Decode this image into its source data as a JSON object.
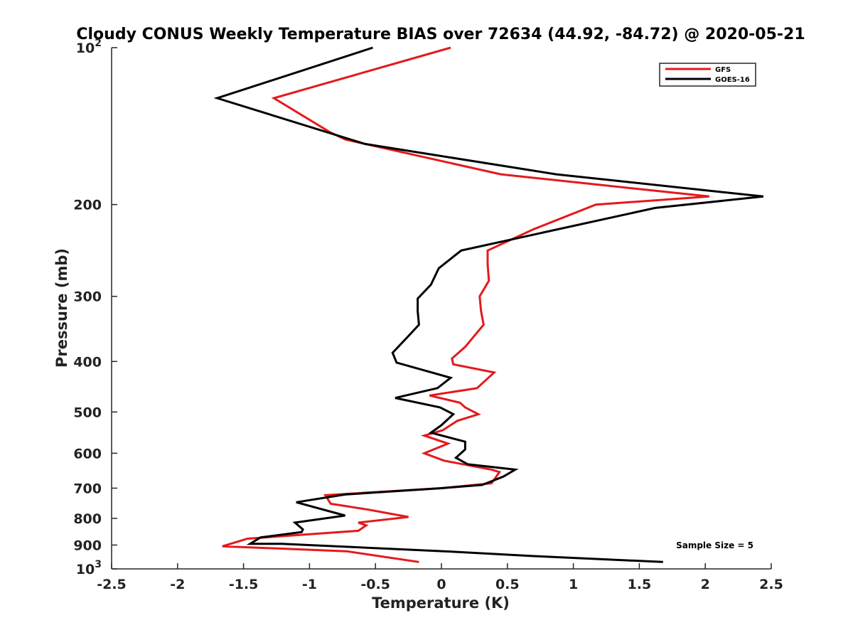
{
  "chart_data": {
    "type": "line",
    "title": "Cloudy CONUS Weekly Temperature BIAS over 72634 (44.92, -84.72) @ 2020-05-21",
    "xlabel": "Temperature (K)",
    "ylabel": "Pressure (mb)",
    "xlim": [
      -2.5,
      2.5
    ],
    "ylim": [
      1000,
      100
    ],
    "y_scale": "log",
    "y_reversed": true,
    "grid": false,
    "legend_position": "top-right",
    "x_ticks": [
      "-2.5",
      "-2",
      "-1.5",
      "-1",
      "-0.5",
      "0",
      "0.5",
      "1",
      "1.5",
      "2",
      "2.5"
    ],
    "y_ticks": [
      {
        "value": 100,
        "base": "10",
        "exp": "2"
      },
      {
        "value": 200,
        "label": "200"
      },
      {
        "value": 300,
        "label": "300"
      },
      {
        "value": 400,
        "label": "400"
      },
      {
        "value": 500,
        "label": "500"
      },
      {
        "value": 600,
        "label": "600"
      },
      {
        "value": 700,
        "label": "700"
      },
      {
        "value": 800,
        "label": "800"
      },
      {
        "value": 900,
        "label": "900"
      },
      {
        "value": 1000,
        "base": "10",
        "exp": "3"
      }
    ],
    "series": [
      {
        "name": "GFS",
        "color": "#e31a1c",
        "points": [
          [
            0.07,
            100
          ],
          [
            -1.27,
            125
          ],
          [
            -0.85,
            145
          ],
          [
            -0.73,
            150
          ],
          [
            0.45,
            175
          ],
          [
            2.03,
            193
          ],
          [
            1.17,
            200
          ],
          [
            0.7,
            223
          ],
          [
            0.35,
            245
          ],
          [
            0.35,
            260
          ],
          [
            0.36,
            280
          ],
          [
            0.29,
            300
          ],
          [
            0.3,
            320
          ],
          [
            0.32,
            340
          ],
          [
            0.18,
            375
          ],
          [
            0.08,
            395
          ],
          [
            0.09,
            405
          ],
          [
            0.4,
            420
          ],
          [
            0.27,
            450
          ],
          [
            -0.09,
            465
          ],
          [
            0.14,
            480
          ],
          [
            0.18,
            490
          ],
          [
            0.28,
            505
          ],
          [
            0.12,
            520
          ],
          [
            0.01,
            542
          ],
          [
            -0.13,
            555
          ],
          [
            0.05,
            575
          ],
          [
            -0.13,
            600
          ],
          [
            0.02,
            620
          ],
          [
            0.38,
            645
          ],
          [
            0.44,
            652
          ],
          [
            0.38,
            685
          ],
          [
            0.0,
            700
          ],
          [
            -0.88,
            722
          ],
          [
            -0.84,
            750
          ],
          [
            -0.55,
            770
          ],
          [
            -0.25,
            795
          ],
          [
            -0.63,
            815
          ],
          [
            -0.57,
            825
          ],
          [
            -0.63,
            845
          ],
          [
            -1.47,
            875
          ],
          [
            -1.66,
            905
          ],
          [
            -0.72,
            925
          ],
          [
            -0.17,
            970
          ]
        ]
      },
      {
        "name": "GOES-16",
        "color": "#000000",
        "points": [
          [
            -0.52,
            100
          ],
          [
            -1.7,
            125
          ],
          [
            -0.58,
            153
          ],
          [
            0.87,
            175
          ],
          [
            2.44,
            193
          ],
          [
            1.62,
            203
          ],
          [
            0.15,
            245
          ],
          [
            -0.02,
            265
          ],
          [
            -0.08,
            285
          ],
          [
            -0.18,
            303
          ],
          [
            -0.18,
            320
          ],
          [
            -0.17,
            340
          ],
          [
            -0.27,
            362
          ],
          [
            -0.37,
            385
          ],
          [
            -0.34,
            402
          ],
          [
            0.07,
            430
          ],
          [
            -0.03,
            450
          ],
          [
            -0.35,
            470
          ],
          [
            -0.01,
            490
          ],
          [
            0.09,
            505
          ],
          [
            0.0,
            530
          ],
          [
            -0.08,
            548
          ],
          [
            0.18,
            570
          ],
          [
            0.18,
            590
          ],
          [
            0.11,
            612
          ],
          [
            0.2,
            630
          ],
          [
            0.56,
            645
          ],
          [
            0.47,
            665
          ],
          [
            0.31,
            690
          ],
          [
            0.0,
            700
          ],
          [
            -0.73,
            720
          ],
          [
            -1.1,
            745
          ],
          [
            -0.73,
            790
          ],
          [
            -1.11,
            815
          ],
          [
            -1.05,
            840
          ],
          [
            -1.06,
            850
          ],
          [
            -1.37,
            870
          ],
          [
            -1.45,
            895
          ],
          [
            -1.21,
            895
          ],
          [
            0.02,
            925
          ],
          [
            0.7,
            945
          ],
          [
            1.68,
            970
          ]
        ]
      }
    ],
    "annotation": "Sample Size = 5"
  }
}
